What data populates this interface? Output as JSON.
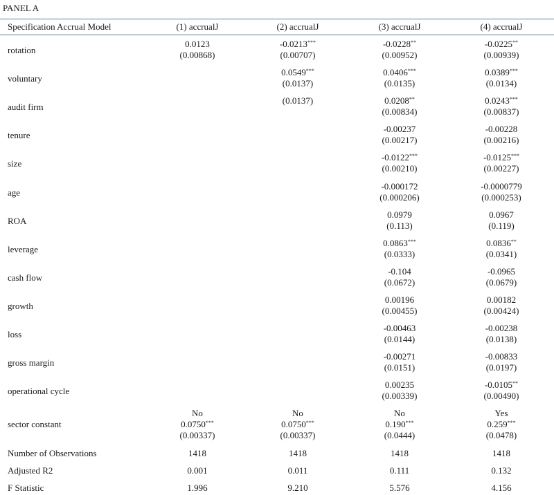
{
  "panel_title": "PANEL A",
  "header": {
    "label": "Specification Accrual Model",
    "columns": [
      "(1) accrualJ",
      "(2) accrualJ",
      "(3) accrualJ",
      "(4) accrualJ"
    ]
  },
  "rows": [
    {
      "label": "rotation",
      "cells": [
        {
          "coef": "0.0123",
          "stars": "",
          "se": "(0.00868)"
        },
        {
          "coef": "-0.0213",
          "stars": "***",
          "se": "(0.00707)"
        },
        {
          "coef": "-0.0228",
          "stars": "**",
          "se": "(0.00952)"
        },
        {
          "coef": "-0.0225",
          "stars": "**",
          "se": "(0.00939)"
        }
      ]
    },
    {
      "label": "voluntary",
      "cells": [
        null,
        {
          "coef": "0.0549",
          "stars": "***",
          "se": "(0.0137)"
        },
        {
          "coef": "0.0406",
          "stars": "***",
          "se": "(0.0135)"
        },
        {
          "coef": "0.0389",
          "stars": "***",
          "se": "(0.0134)"
        }
      ]
    },
    {
      "label": "audit firm",
      "cells": [
        null,
        {
          "coef": "",
          "stars": "",
          "se": "(0.0137)"
        },
        {
          "coef": "0.0208",
          "stars": "**",
          "se": "(0.00834)"
        },
        {
          "coef": "0.0243",
          "stars": "***",
          "se": "(0.00837)"
        }
      ]
    },
    {
      "label": "tenure",
      "cells": [
        null,
        null,
        {
          "coef": "-0.00237",
          "stars": "",
          "se": "(0.00217)"
        },
        {
          "coef": "-0.00228",
          "stars": "",
          "se": "(0.00216)"
        }
      ]
    },
    {
      "label": "size",
      "cells": [
        null,
        null,
        {
          "coef": "-0.0122",
          "stars": "***",
          "se": "(0.00210)"
        },
        {
          "coef": "-0.0125",
          "stars": "***",
          "se": "(0.00227)"
        }
      ]
    },
    {
      "label": "age",
      "cells": [
        null,
        null,
        {
          "coef": "-0.000172",
          "stars": "",
          "se": "(0.000206)"
        },
        {
          "coef": "-0.0000779",
          "stars": "",
          "se": "(0.000253)"
        }
      ]
    },
    {
      "label": "ROA",
      "cells": [
        null,
        null,
        {
          "coef": "0.0979",
          "stars": "",
          "se": "(0.113)"
        },
        {
          "coef": "0.0967",
          "stars": "",
          "se": "(0.119)"
        }
      ]
    },
    {
      "label": "leverage",
      "cells": [
        null,
        null,
        {
          "coef": "0.0863",
          "stars": "***",
          "se": "(0.0333)"
        },
        {
          "coef": "0.0836",
          "stars": "**",
          "se": "(0.0341)"
        }
      ]
    },
    {
      "label": "cash flow",
      "cells": [
        null,
        null,
        {
          "coef": "-0.104",
          "stars": "",
          "se": "(0.0672)"
        },
        {
          "coef": "-0.0965",
          "stars": "",
          "se": "(0.0679)"
        }
      ]
    },
    {
      "label": "growth",
      "cells": [
        null,
        null,
        {
          "coef": "0.00196",
          "stars": "",
          "se": "(0.00455)"
        },
        {
          "coef": "0.00182",
          "stars": "",
          "se": "(0.00424)"
        }
      ]
    },
    {
      "label": "loss",
      "cells": [
        null,
        null,
        {
          "coef": "-0.00463",
          "stars": "",
          "se": "(0.0144)"
        },
        {
          "coef": "-0.00238",
          "stars": "",
          "se": "(0.0138)"
        }
      ]
    },
    {
      "label": "gross margin",
      "cells": [
        null,
        null,
        {
          "coef": "-0.00271",
          "stars": "",
          "se": "(0.0151)"
        },
        {
          "coef": "-0.00833",
          "stars": "",
          "se": "(0.0197)"
        }
      ]
    },
    {
      "label": "operational cycle",
      "cells": [
        null,
        null,
        {
          "coef": "0.00235",
          "stars": "",
          "se": "(0.00339)"
        },
        {
          "coef": "-0.0105",
          "stars": "**",
          "se": "(0.00490)"
        }
      ]
    }
  ],
  "sector_constant": {
    "label": "sector constant",
    "cells": [
      {
        "sector": "No",
        "coef": "0.0750",
        "stars": "***",
        "se": "(0.00337)"
      },
      {
        "sector": "No",
        "coef": "0.0750",
        "stars": "***",
        "se": "(0.00337)"
      },
      {
        "sector": "No",
        "coef": "0.190",
        "stars": "***",
        "se": "(0.0444)"
      },
      {
        "sector": "Yes",
        "coef": "0.259",
        "stars": "***",
        "se": "(0.0478)"
      }
    ]
  },
  "stats": [
    {
      "label": "Number of Observations",
      "values": [
        "1418",
        "1418",
        "1418",
        "1418"
      ]
    },
    {
      "label": "Adjusted R2",
      "values": [
        "0.001",
        "0.011",
        "0.111",
        "0.132"
      ]
    },
    {
      "label": "F Statistic",
      "values": [
        "1.996",
        "9.210",
        "5.576",
        "4.156"
      ]
    }
  ],
  "colors": {
    "rule": "#5a78a0",
    "text": "#1a1a1a"
  }
}
